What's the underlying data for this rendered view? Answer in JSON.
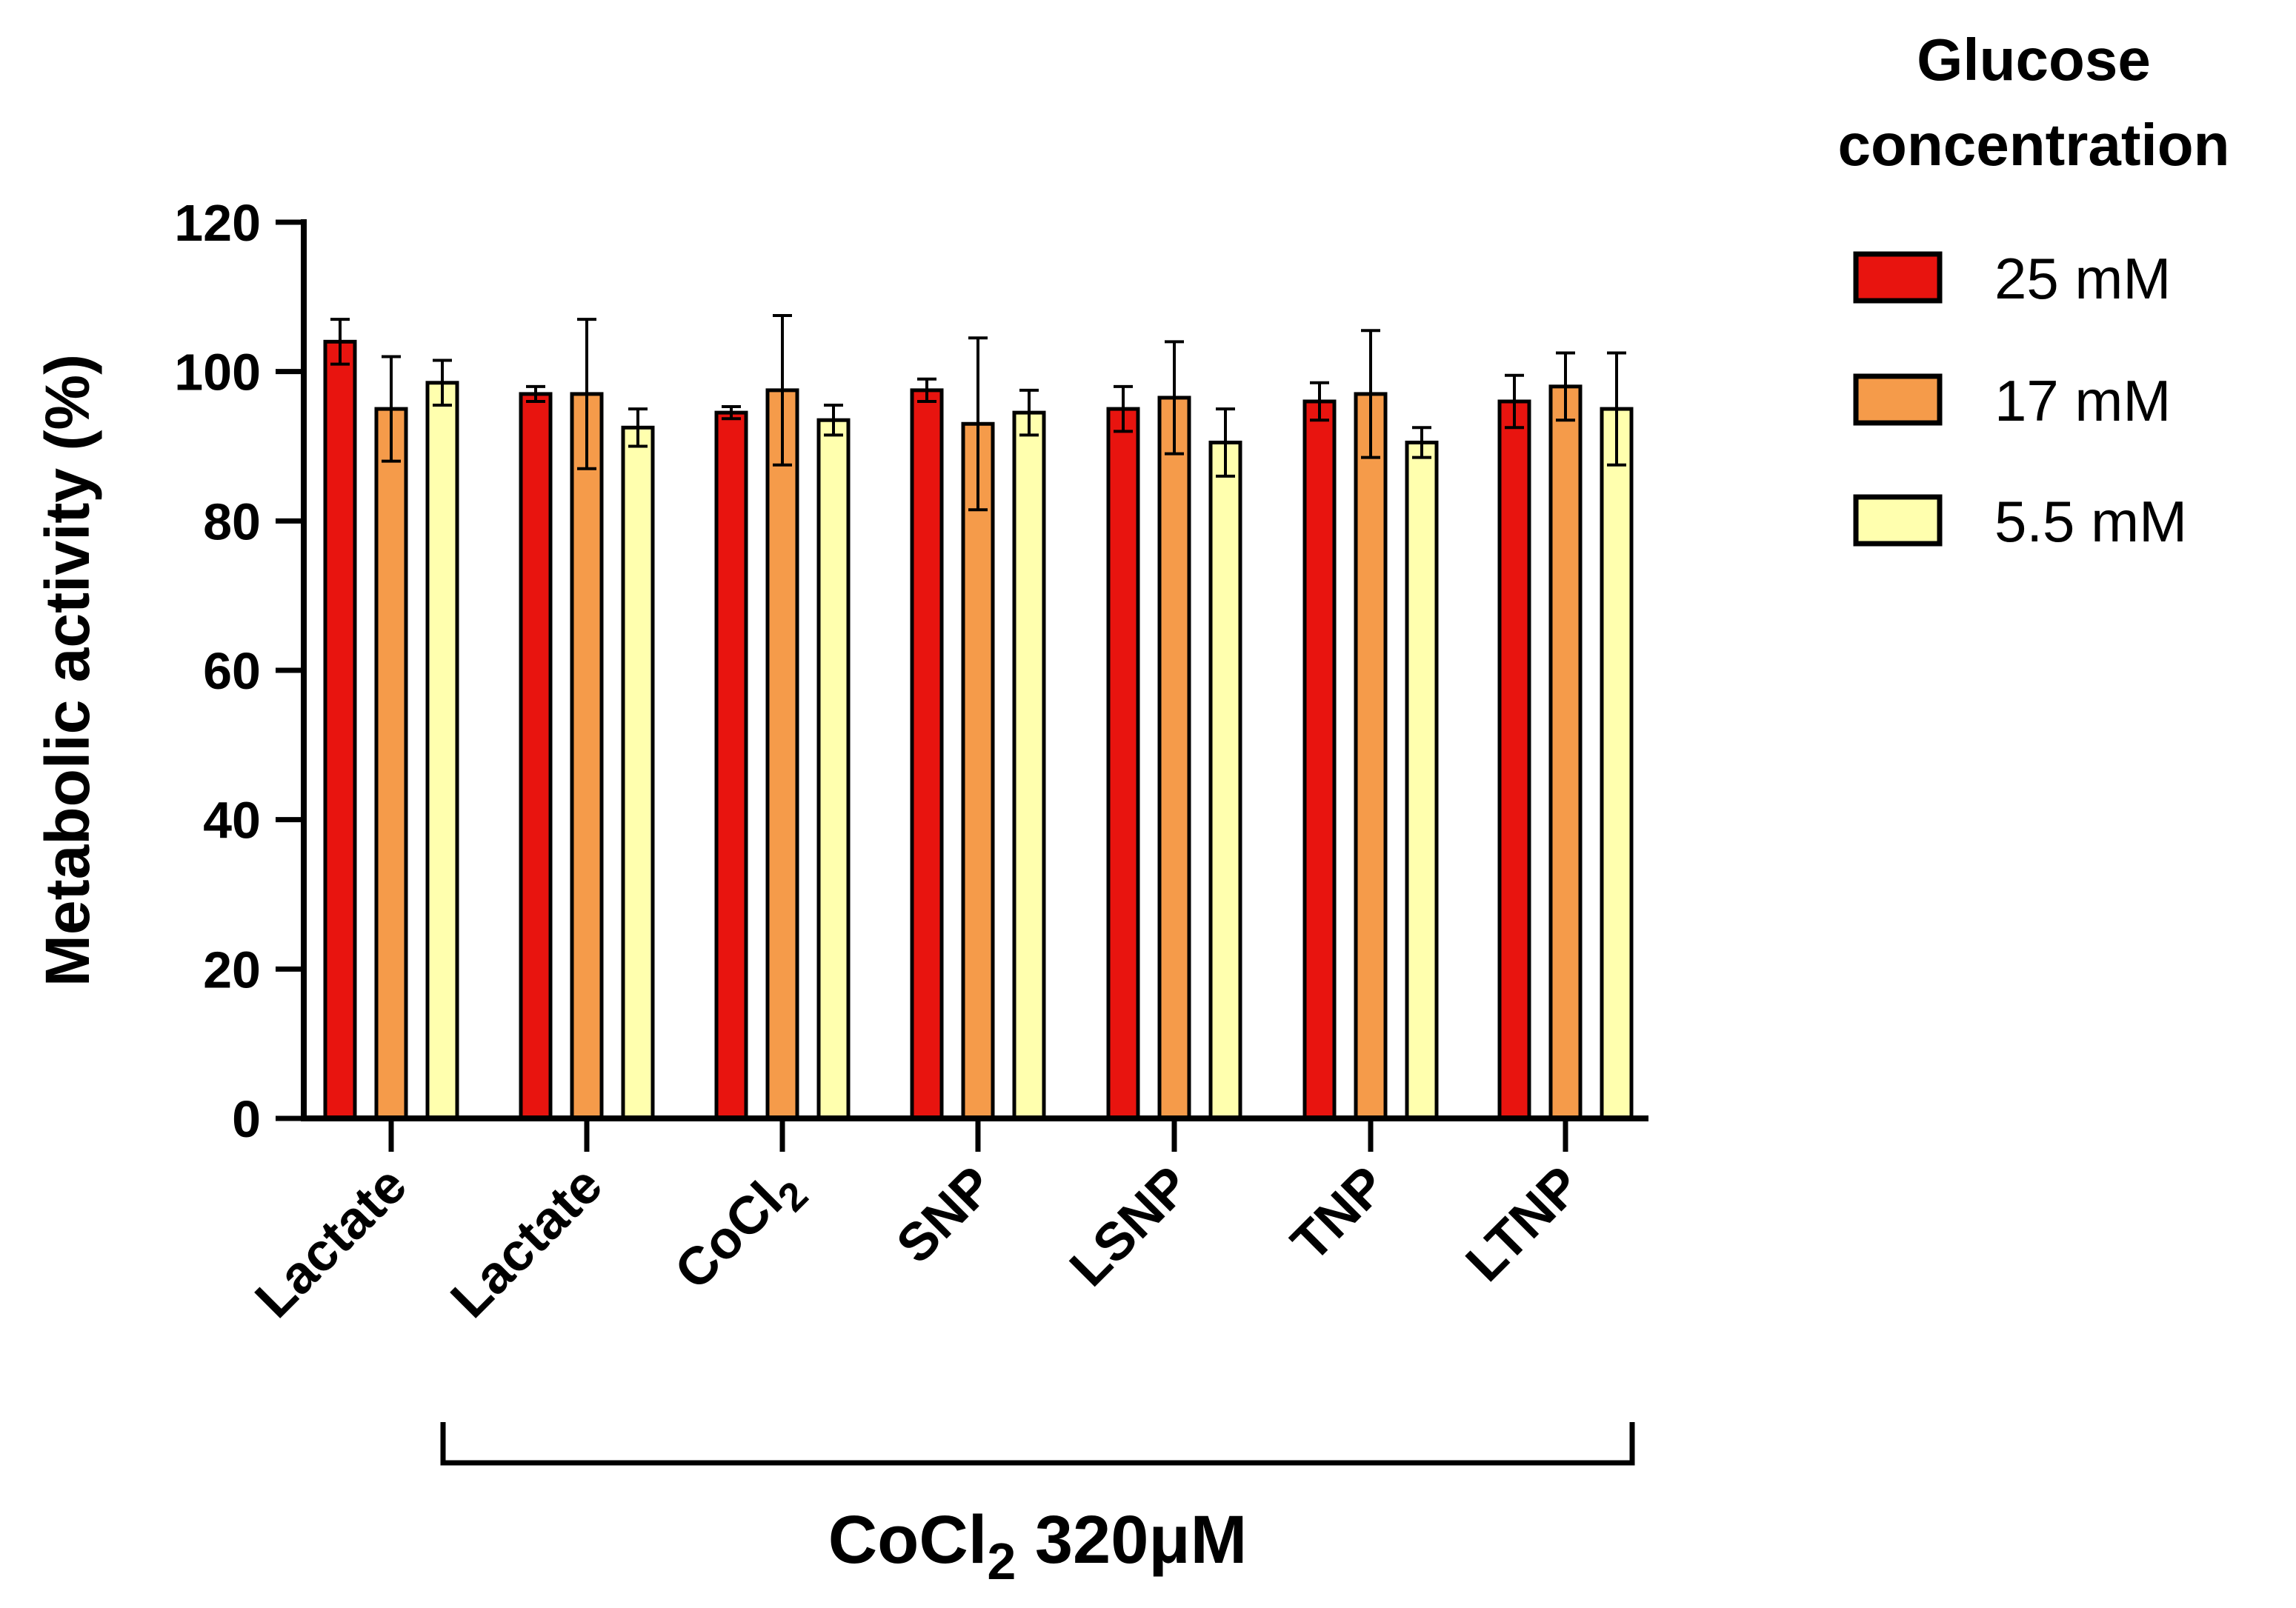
{
  "chart_data": {
    "type": "bar",
    "ylabel": "Metabolic activity (%)",
    "ylim": [
      0,
      120
    ],
    "yticks": [
      0,
      20,
      40,
      60,
      80,
      100,
      120
    ],
    "categories": [
      {
        "main": "Lactate",
        "sub": ""
      },
      {
        "main": "Lactate",
        "sub": ""
      },
      {
        "main": "CoCl",
        "sub": "2"
      },
      {
        "main": "SNP",
        "sub": ""
      },
      {
        "main": "LSNP",
        "sub": ""
      },
      {
        "main": "TNP",
        "sub": ""
      },
      {
        "main": "LTNP",
        "sub": ""
      }
    ],
    "series": [
      {
        "name": "25 mM",
        "color": "#e8140f",
        "values": [
          104,
          97,
          94.5,
          97.5,
          95,
          96,
          96
        ],
        "errors": [
          3,
          1,
          0.8,
          1.5,
          3,
          2.5,
          3.5
        ]
      },
      {
        "name": "17 mM",
        "color": "#f59b4a",
        "values": [
          95,
          97,
          97.5,
          93,
          96.5,
          97,
          98
        ],
        "errors": [
          7,
          10,
          10,
          11.5,
          7.5,
          8.5,
          4.5
        ]
      },
      {
        "name": "5.5 mM",
        "color": "#ffffae",
        "values": [
          98.5,
          92.5,
          93.5,
          94.5,
          90.5,
          90.5,
          95
        ],
        "errors": [
          3,
          2.5,
          2,
          3,
          4.5,
          2,
          7.5
        ]
      }
    ],
    "legend": {
      "title_line1": "Glucose",
      "title_line2": "concentration",
      "placement": "top-right"
    },
    "bracket": {
      "label_main": "CoCl",
      "label_sub": "2",
      "label_rest": "320μM",
      "from_category": 1,
      "to_category": 6
    }
  }
}
